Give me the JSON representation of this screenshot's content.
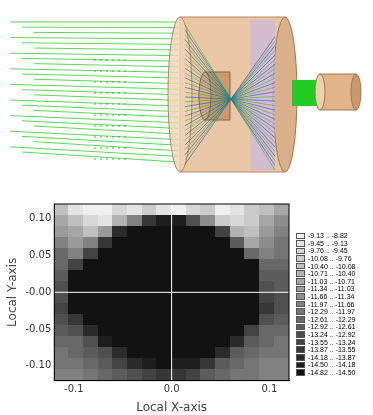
{
  "chart_data": {
    "type": "heatmap",
    "x_label": "Local X-axis",
    "y_label": "Local Y-axis",
    "xlim": [
      -0.12,
      0.12
    ],
    "ylim": [
      -0.12,
      0.12
    ],
    "xticks": [
      {
        "value": -0.1,
        "label": "-0.1"
      },
      {
        "value": 0,
        "label": "0.0"
      },
      {
        "value": 0.1,
        "label": "0.1"
      }
    ],
    "yticks": [
      {
        "value": -0.1,
        "label": "-0.10"
      },
      {
        "value": -0.05,
        "label": "-0.05"
      },
      {
        "value": 0,
        "label": "-0.00"
      },
      {
        "value": 0.05,
        "label": "0.05"
      },
      {
        "value": 0.1,
        "label": "0.10"
      }
    ],
    "grid": false,
    "x": [
      -0.1125,
      -0.0975,
      -0.0825,
      -0.0675,
      -0.0525,
      -0.0375,
      -0.0225,
      -0.0075,
      0.0075,
      0.0225,
      0.0375,
      0.0525,
      0.0675,
      0.0825,
      0.0975,
      0.1125
    ],
    "y": [
      0.1125,
      0.0975,
      0.0825,
      0.0675,
      0.0525,
      0.0375,
      0.0225,
      0.0075,
      -0.0075,
      -0.0225,
      -0.0375,
      -0.0525,
      -0.0675,
      -0.0825,
      -0.0975,
      -0.1125
    ],
    "z": [
      [
        -10.2,
        -9.4,
        -9.1,
        -9.0,
        -9.6,
        -9.3,
        -10.0,
        -9.2,
        -9.0,
        -9.5,
        -9.9,
        -9.1,
        -9.3,
        -9.8,
        -10.4,
        -11.0
      ],
      [
        -10.8,
        -10.1,
        -9.6,
        -9.4,
        -10.6,
        -11.9,
        -13.6,
        -14.3,
        -14.3,
        -13.2,
        -11.5,
        -9.8,
        -9.5,
        -10.0,
        -10.9,
        -11.4
      ],
      [
        -11.3,
        -10.9,
        -10.3,
        -11.2,
        -13.9,
        -14.7,
        -14.7,
        -14.7,
        -14.7,
        -14.7,
        -14.7,
        -13.4,
        -10.6,
        -10.2,
        -11.1,
        -11.8
      ],
      [
        -11.9,
        -11.2,
        -11.7,
        -13.8,
        -14.7,
        -14.7,
        -14.7,
        -14.7,
        -14.7,
        -14.7,
        -14.7,
        -14.7,
        -12.9,
        -10.9,
        -11.4,
        -12.0
      ],
      [
        -12.3,
        -11.8,
        -13.5,
        -14.7,
        -14.7,
        -14.7,
        -14.7,
        -14.7,
        -14.7,
        -14.7,
        -14.7,
        -14.7,
        -14.7,
        -12.6,
        -11.8,
        -12.2
      ],
      [
        -12.6,
        -13.3,
        -14.7,
        -14.7,
        -14.7,
        -14.7,
        -14.7,
        -14.7,
        -14.7,
        -14.7,
        -14.7,
        -14.7,
        -14.7,
        -14.7,
        -12.5,
        -12.4
      ],
      [
        -12.9,
        -14.7,
        -14.7,
        -14.7,
        -14.7,
        -14.7,
        -14.7,
        -14.7,
        -14.7,
        -14.7,
        -14.7,
        -14.7,
        -14.7,
        -14.7,
        -12.8,
        -12.7
      ],
      [
        -13.1,
        -14.7,
        -14.7,
        -14.7,
        -14.7,
        -14.7,
        -14.7,
        -14.7,
        -14.7,
        -14.7,
        -14.7,
        -14.7,
        -14.7,
        -14.7,
        -13.0,
        -12.9
      ],
      [
        -13.2,
        -14.7,
        -14.7,
        -14.7,
        -14.7,
        -14.7,
        -14.7,
        -14.7,
        -14.7,
        -14.7,
        -14.7,
        -14.7,
        -14.7,
        -14.7,
        -13.3,
        -13.0
      ],
      [
        -13.4,
        -14.7,
        -14.7,
        -14.7,
        -14.7,
        -14.7,
        -14.7,
        -14.7,
        -14.7,
        -14.7,
        -14.7,
        -14.7,
        -14.7,
        -14.7,
        -13.6,
        -13.1
      ],
      [
        -13.1,
        -13.8,
        -14.7,
        -14.7,
        -14.7,
        -14.7,
        -14.7,
        -14.7,
        -14.7,
        -14.7,
        -14.7,
        -14.7,
        -14.7,
        -14.7,
        -13.2,
        -12.8
      ],
      [
        -12.7,
        -13.0,
        -14.0,
        -14.7,
        -14.7,
        -14.7,
        -14.7,
        -14.7,
        -14.7,
        -14.7,
        -14.7,
        -14.7,
        -14.7,
        -13.4,
        -12.6,
        -12.5
      ],
      [
        -12.4,
        -12.6,
        -13.2,
        -14.2,
        -14.7,
        -14.7,
        -14.7,
        -14.7,
        -14.7,
        -14.7,
        -14.7,
        -14.7,
        -13.9,
        -12.7,
        -12.3,
        -12.2
      ],
      [
        -12.2,
        -12.3,
        -12.7,
        -13.1,
        -14.1,
        -14.7,
        -14.7,
        -14.7,
        -14.7,
        -14.7,
        -14.7,
        -14.0,
        -12.9,
        -12.4,
        -12.1,
        -12.0
      ],
      [
        -12.0,
        -12.1,
        -12.4,
        -12.8,
        -13.3,
        -13.9,
        -14.4,
        -14.6,
        -14.5,
        -14.2,
        -13.6,
        -12.9,
        -12.5,
        -12.2,
        -11.9,
        -11.8
      ],
      [
        -11.8,
        -11.9,
        -12.1,
        -12.5,
        -12.9,
        -13.2,
        -13.5,
        -13.7,
        -13.6,
        -13.3,
        -12.9,
        -12.5,
        -12.2,
        -12.0,
        -11.8,
        -11.7
      ]
    ],
    "colorbar": {
      "bounds": [
        -14.82,
        -14.5,
        -14.18,
        -13.87,
        -13.55,
        -13.24,
        -12.92,
        -12.61,
        -12.29,
        -11.97,
        -11.66,
        -11.34,
        -11.03,
        -10.71,
        -10.4,
        -10.08,
        -9.76,
        -9.45,
        -9.13,
        -8.82
      ],
      "labels": [
        "-14.82 .. -14.50",
        "-14.50 .. -14.18",
        "-14.18 .. -13.87",
        "-13.87 .. -13.55",
        "-13.55 .. -13.24",
        "-13.24 .. -12.92",
        "-12.92 .. -12.61",
        "-12.61 .. -12.29",
        "-12.29 .. -11.97",
        "-11.97 .. -11.66",
        "-11.66 .. -11.34",
        "-11.34 .. -11.03",
        "-11.03 .. -10.71",
        "-10.71 .. -10.40",
        "-10.40 .. -10.08",
        "-10.08 .. -9.76",
        "-9.76 .. -9.45",
        "-9.45 .. -9.13",
        "-9.13 .. -8.82"
      ]
    }
  }
}
